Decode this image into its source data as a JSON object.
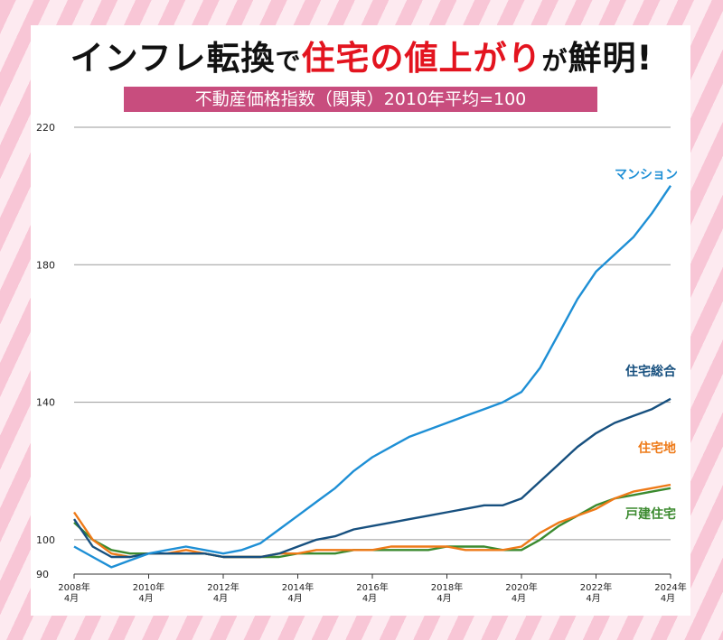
{
  "header": {
    "title_part1": "インフレ転換",
    "title_part2": "で",
    "title_part3": "住宅の値上がり",
    "title_part4": "が",
    "title_part5": "鮮明!",
    "subtitle": "不動産価格指数（関東）2010年平均=100"
  },
  "colors": {
    "mansion": "#1e8fd5",
    "sogo": "#17507f",
    "tochi": "#ee7a18",
    "kodate": "#3b8a2f",
    "accent": "#e3141f",
    "subtitle_bg": "#c84d7e"
  },
  "chart_data": {
    "type": "line",
    "ylim": [
      90,
      220
    ],
    "y_ticks": [
      "90",
      "100",
      "140",
      "180",
      "220"
    ],
    "x_ticks": [
      {
        "year": "2008年",
        "month": "4月"
      },
      {
        "year": "2010年",
        "month": "4月"
      },
      {
        "year": "2012年",
        "month": "4月"
      },
      {
        "year": "2014年",
        "month": "4月"
      },
      {
        "year": "2016年",
        "month": "4月"
      },
      {
        "year": "2018年",
        "month": "4月"
      },
      {
        "year": "2020年",
        "month": "4月"
      },
      {
        "year": "2022年",
        "month": "4月"
      },
      {
        "year": "2024年",
        "month": "4月"
      }
    ],
    "x": [
      2008.25,
      2008.75,
      2009.25,
      2009.75,
      2010.25,
      2010.75,
      2011.25,
      2011.75,
      2012.25,
      2012.75,
      2013.25,
      2013.75,
      2014.25,
      2014.75,
      2015.25,
      2015.75,
      2016.25,
      2016.75,
      2017.25,
      2017.75,
      2018.25,
      2018.75,
      2019.25,
      2019.75,
      2020.25,
      2020.75,
      2021.25,
      2021.75,
      2022.25,
      2022.75,
      2023.25,
      2023.75,
      2024.25
    ],
    "series": [
      {
        "name": "マンション",
        "key": "mansion",
        "values": [
          98,
          95,
          92,
          94,
          96,
          97,
          98,
          97,
          96,
          97,
          99,
          103,
          107,
          111,
          115,
          120,
          124,
          127,
          130,
          132,
          134,
          136,
          138,
          140,
          143,
          150,
          160,
          170,
          178,
          183,
          188,
          195,
          203
        ]
      },
      {
        "name": "住宅総合",
        "key": "sogo",
        "values": [
          106,
          98,
          95,
          95,
          96,
          96,
          96,
          96,
          95,
          95,
          95,
          96,
          98,
          100,
          101,
          103,
          104,
          105,
          106,
          107,
          108,
          109,
          110,
          110,
          112,
          117,
          122,
          127,
          131,
          134,
          136,
          138,
          141
        ]
      },
      {
        "name": "住宅地",
        "key": "tochi",
        "values": [
          108,
          100,
          96,
          95,
          96,
          96,
          97,
          96,
          95,
          95,
          95,
          96,
          96,
          97,
          97,
          97,
          97,
          98,
          98,
          98,
          98,
          97,
          97,
          97,
          98,
          102,
          105,
          107,
          109,
          112,
          114,
          115,
          116
        ]
      },
      {
        "name": "戸建住宅",
        "key": "kodate",
        "values": [
          105,
          100,
          97,
          96,
          96,
          96,
          96,
          96,
          95,
          95,
          95,
          95,
          96,
          96,
          96,
          97,
          97,
          97,
          97,
          97,
          98,
          98,
          98,
          97,
          97,
          100,
          104,
          107,
          110,
          112,
          113,
          114,
          115
        ]
      }
    ]
  }
}
